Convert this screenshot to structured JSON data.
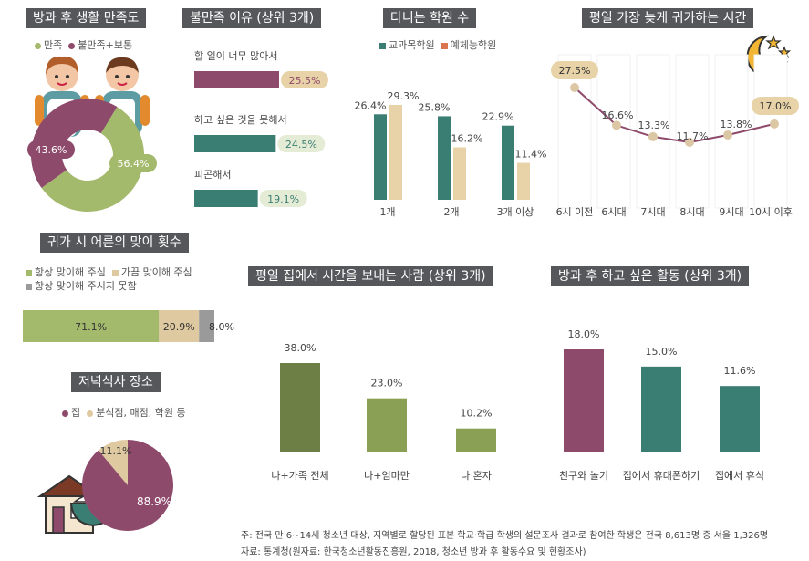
{
  "colors": {
    "plum": "#8e4a6b",
    "teal": "#3a7d73",
    "olive": "#a3b96b",
    "beige": "#dfc9a0",
    "gray": "#9a9a9a",
    "darkolive": "#6e7f45",
    "midolive": "#8aa054",
    "peach": "#e8d3a8",
    "title_bg": "#55575a"
  },
  "satisfaction": {
    "title": "방과 후 생활 만족도",
    "legend": [
      "만족",
      "불만족+보통"
    ],
    "icons": [
      "student-girl-icon",
      "student-boy-icon"
    ]
  },
  "dissatisfaction": {
    "title": "불만족 이유 (상위 3개)"
  },
  "academy": {
    "title": "다니는 학원 수",
    "legend": [
      "교과목학원",
      "예체능학원"
    ]
  },
  "return_time": {
    "title": "평일 가장 늦게 귀가하는 시간",
    "icons": [
      "moon-stars-icon"
    ]
  },
  "greeting": {
    "title": "귀가 시 어른의 맞이 횟수",
    "legend": [
      "항상 맞이해 주심",
      "가끔 맞이해 주심",
      "항상 맞이해 주시지 못함"
    ]
  },
  "dinner": {
    "title": "저녁식사 장소",
    "legend": [
      "집",
      "분식점, 매점, 학원 등"
    ],
    "icons": [
      "house-icon",
      "rice-bowl-icon"
    ]
  },
  "with_whom": {
    "title": "평일 집에서 시간을 보내는 사람 (상위 3개)"
  },
  "wish": {
    "title": "방과 후 하고 싶은 활동 (상위 3개)"
  },
  "footnote": {
    "line1": "주: 전국 만 6~14세 청소년 대상, 지역별로 할당된 표본 학교·학급 학생의 설문조사 결과로 참여한 학생은 전국 8,613명 중 서울 1,326명",
    "line2": "자료: 통계청(원자료: 한국청소년활동진흥원, 2018, 청소년 방과 후 활동수요 및 현황조사)"
  },
  "chart_data": [
    {
      "id": "satisfaction",
      "type": "pie",
      "title": "방과 후 생활 만족도",
      "categories": [
        "만족",
        "불만족+보통"
      ],
      "values": [
        56.4,
        43.6
      ],
      "labels": [
        "56.4%",
        "43.6%"
      ]
    },
    {
      "id": "dissatisfaction",
      "type": "bar",
      "title": "불만족 이유 (상위 3개)",
      "categories": [
        "할 일이 너무 많아서",
        "하고 싶은 것을 못해서",
        "피곤해서"
      ],
      "values": [
        25.5,
        24.5,
        19.1
      ],
      "labels": [
        "25.5%",
        "24.5%",
        "19.1%"
      ]
    },
    {
      "id": "academy",
      "type": "bar",
      "title": "다니는 학원 수",
      "categories": [
        "1개",
        "2개",
        "3개 이상"
      ],
      "series": [
        {
          "name": "교과목학원",
          "values": [
            26.4,
            25.8,
            22.9
          ],
          "labels": [
            "26.4%",
            "25.8%",
            "22.9%"
          ]
        },
        {
          "name": "예체능학원",
          "values": [
            29.3,
            16.2,
            11.4
          ],
          "labels": [
            "29.3%",
            "16.2%",
            "11.4%"
          ]
        }
      ]
    },
    {
      "id": "return_time",
      "type": "line",
      "title": "평일 가장 늦게 귀가하는 시간",
      "categories": [
        "6시 이전",
        "6시대",
        "7시대",
        "8시대",
        "9시대",
        "10시 이후"
      ],
      "values": [
        27.5,
        16.6,
        13.3,
        11.7,
        13.8,
        17.0
      ],
      "labels": [
        "27.5%",
        "16.6%",
        "13.3%",
        "11.7%",
        "13.8%",
        "17.0%"
      ]
    },
    {
      "id": "greeting",
      "type": "bar",
      "title": "귀가 시 어른의 맞이 횟수",
      "categories": [
        "항상 맞이해 주심",
        "가끔 맞이해 주심",
        "항상 맞이해 주시지 못함"
      ],
      "values": [
        71.1,
        20.9,
        8.0
      ],
      "labels": [
        "71.1%",
        "20.9%",
        "8.0%"
      ]
    },
    {
      "id": "dinner",
      "type": "pie",
      "title": "저녁식사 장소",
      "categories": [
        "집",
        "분식점, 매점, 학원 등"
      ],
      "values": [
        88.9,
        11.1
      ],
      "labels": [
        "88.9%",
        "11.1%"
      ]
    },
    {
      "id": "with_whom",
      "type": "bar",
      "title": "평일 집에서 시간을 보내는 사람 (상위 3개)",
      "categories": [
        "나+가족 전체",
        "나+엄마만",
        "나 혼자"
      ],
      "values": [
        38.0,
        23.0,
        10.2
      ],
      "labels": [
        "38.0%",
        "23.0%",
        "10.2%"
      ]
    },
    {
      "id": "wish",
      "type": "bar",
      "title": "방과 후 하고 싶은 활동 (상위 3개)",
      "categories": [
        "친구와 놀기",
        "집에서 휴대폰하기",
        "집에서 휴식"
      ],
      "values": [
        18.0,
        15.0,
        11.6
      ],
      "labels": [
        "18.0%",
        "15.0%",
        "11.6%"
      ]
    }
  ]
}
